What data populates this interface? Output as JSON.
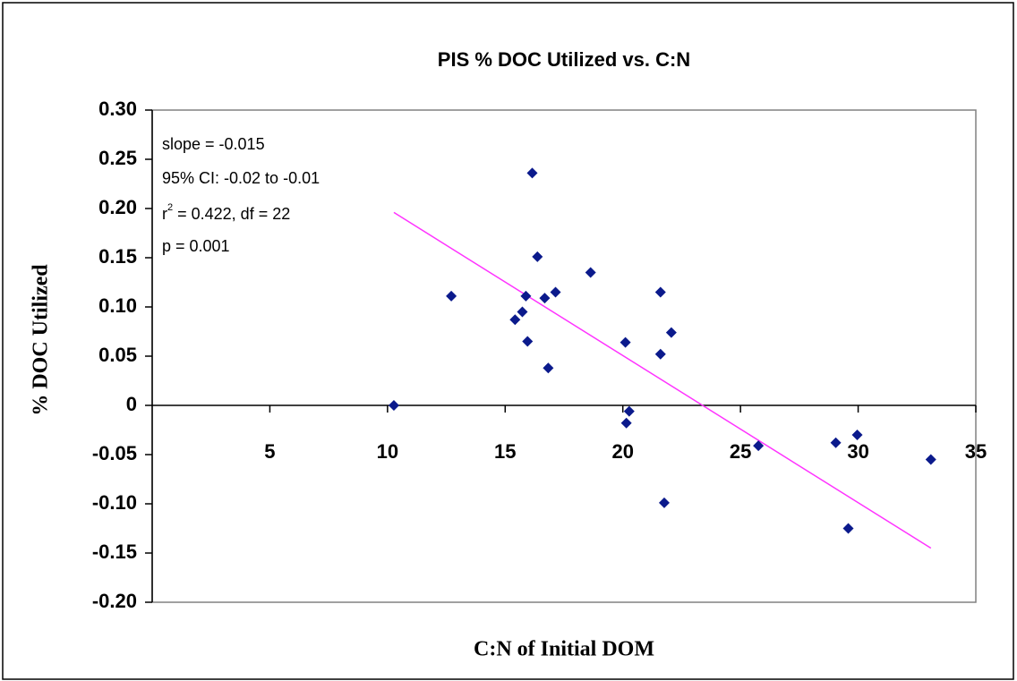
{
  "chart_data": {
    "type": "scatter",
    "title": "PIS % DOC Utilized vs. C:N",
    "x_label": "C:N of Initial DOM",
    "y_label": "% DOC Utilized",
    "annotations": {
      "slope": "slope = -0.015",
      "ci": "95% CI: -0.02 to -0.01",
      "r_base": "r",
      "r_sup": "2",
      "r_rest": " = 0.422, df = 22",
      "p": "p = 0.001"
    },
    "xlim": [
      0,
      35
    ],
    "xticks": [
      5,
      10,
      15,
      20,
      25,
      30,
      35
    ],
    "ylim": [
      -0.2,
      0.3
    ],
    "yticks": [
      {
        "value": 0.3,
        "label": "0.30"
      },
      0.25,
      {
        "value": 0.2,
        "label": "0.20"
      },
      0.15,
      {
        "value": 0.1,
        "label": "0.10"
      },
      0.05,
      0,
      -0.05,
      {
        "value": -0.1,
        "label": "-0.10"
      },
      -0.15,
      {
        "value": -0.2,
        "label": "-0.20"
      }
    ],
    "color": "#0b1a8c",
    "x": [
      10.27,
      12.71,
      15.42,
      15.73,
      15.88,
      15.95,
      16.15,
      16.37,
      16.68,
      16.83,
      17.14,
      18.63,
      20.15,
      20.11,
      20.27,
      21.6,
      21.6,
      22.06,
      21.76,
      25.76,
      29.05,
      29.96,
      29.58,
      33.09
    ],
    "y": [
      0.0,
      0.111,
      0.087,
      0.095,
      0.111,
      0.065,
      0.236,
      0.151,
      0.109,
      0.038,
      0.115,
      0.135,
      -0.018,
      0.064,
      -0.006,
      0.115,
      0.052,
      0.074,
      -0.099,
      -0.041,
      -0.038,
      -0.03,
      -0.125,
      -0.055
    ],
    "trendline": {
      "color": "#ff33ff",
      "x": [
        10.27,
        33.09
      ],
      "y": [
        0.196,
        -0.145
      ]
    }
  }
}
